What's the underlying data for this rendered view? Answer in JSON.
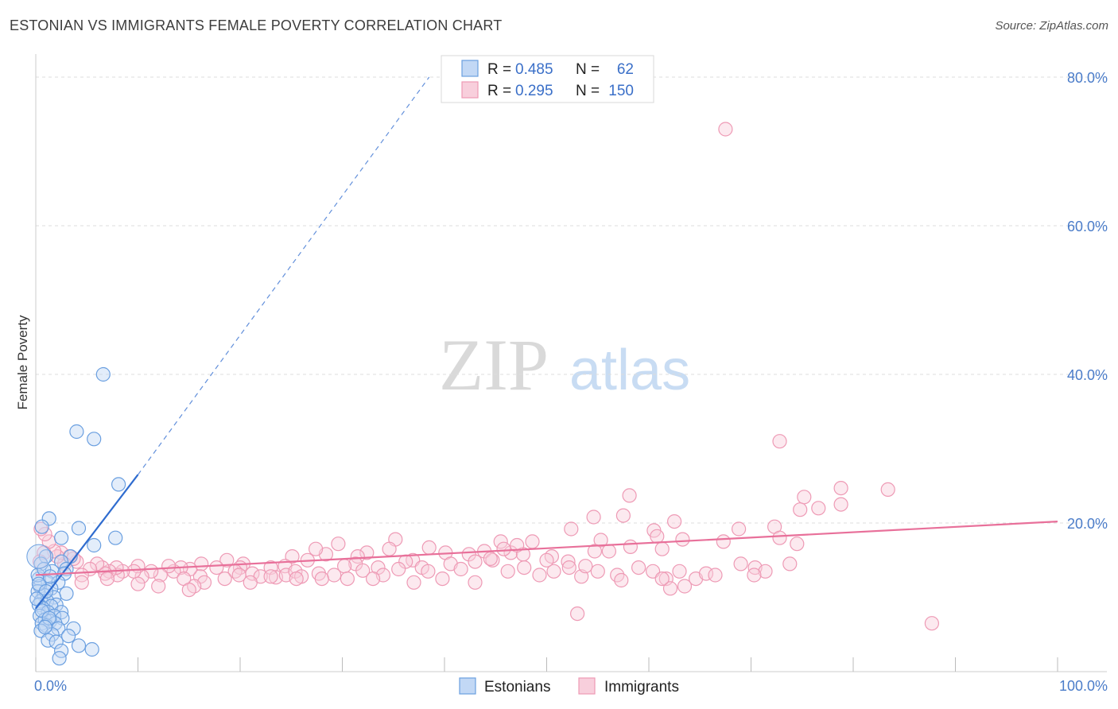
{
  "title": "ESTONIAN VS IMMIGRANTS FEMALE POVERTY CORRELATION CHART",
  "source": "Source: ZipAtlas.com",
  "watermark": {
    "zip": "ZIP",
    "atlas": "atlas"
  },
  "colors": {
    "estonians": "#6a9fe0",
    "estonians_fill": "#c2d8f5",
    "estonians_line": "#2f6ccf",
    "immigrants": "#ee9ab5",
    "immigrants_fill": "#f8cfdc",
    "immigrants_line": "#e8709a",
    "axis_label": "#4a7cc9",
    "grid": "#dddddd"
  },
  "stats_legend": [
    {
      "series": "Estonians",
      "r_label": "R =",
      "r_value": "0.485",
      "n_label": "N =",
      "n_value": "62"
    },
    {
      "series": "Immigrants",
      "r_label": "R =",
      "r_value": "0.295",
      "n_label": "N =",
      "n_value": "150"
    }
  ],
  "chart_data": {
    "type": "scatter",
    "title": "ESTONIAN VS IMMIGRANTS FEMALE POVERTY CORRELATION CHART",
    "xlabel": "",
    "ylabel": "Female Poverty",
    "xlim": [
      0,
      100
    ],
    "ylim": [
      0,
      80
    ],
    "x_tick_labels": [
      "0.0%",
      "100.0%"
    ],
    "y_ticks": [
      20,
      40,
      60,
      80
    ],
    "y_tick_labels": [
      "20.0%",
      "40.0%",
      "60.0%",
      "80.0%"
    ],
    "grid": true,
    "legend_position": "bottom",
    "series": [
      {
        "name": "Estonians",
        "r": 0.485,
        "n": 62,
        "trend": {
          "x": [
            0.0,
            10.0
          ],
          "y": [
            8.5,
            26.5
          ],
          "dashed_to": [
            38.5,
            80.0
          ]
        },
        "points": [
          [
            6.6,
            40.0
          ],
          [
            4.0,
            32.3
          ],
          [
            5.7,
            31.3
          ],
          [
            8.1,
            25.2
          ],
          [
            1.3,
            20.6
          ],
          [
            4.2,
            19.3
          ],
          [
            7.8,
            18.0
          ],
          [
            2.5,
            18.0
          ],
          [
            5.7,
            17.0
          ],
          [
            0.6,
            19.5
          ],
          [
            1.0,
            15.5
          ],
          [
            3.4,
            15.5
          ],
          [
            2.5,
            14.8
          ],
          [
            3.0,
            13.8
          ],
          [
            0.5,
            14.5
          ],
          [
            1.6,
            13.5
          ],
          [
            2.8,
            13.2
          ],
          [
            0.3,
            12.5
          ],
          [
            1.2,
            12.0
          ],
          [
            2.2,
            12.0
          ],
          [
            0.4,
            11.5
          ],
          [
            1.5,
            11.2
          ],
          [
            3.0,
            10.5
          ],
          [
            0.2,
            10.8
          ],
          [
            0.8,
            10.3
          ],
          [
            1.8,
            10.0
          ],
          [
            0.5,
            9.5
          ],
          [
            1.1,
            9.5
          ],
          [
            2.0,
            9.0
          ],
          [
            0.3,
            9.0
          ],
          [
            1.5,
            8.8
          ],
          [
            0.7,
            8.5
          ],
          [
            1.2,
            8.0
          ],
          [
            2.5,
            8.0
          ],
          [
            0.4,
            7.5
          ],
          [
            1.8,
            7.5
          ],
          [
            2.6,
            7.2
          ],
          [
            0.9,
            7.0
          ],
          [
            1.4,
            6.8
          ],
          [
            0.6,
            6.5
          ],
          [
            1.9,
            6.5
          ],
          [
            1.0,
            6.2
          ],
          [
            2.2,
            5.8
          ],
          [
            3.7,
            5.8
          ],
          [
            0.5,
            5.5
          ],
          [
            1.6,
            5.0
          ],
          [
            3.2,
            4.8
          ],
          [
            1.2,
            4.2
          ],
          [
            2.0,
            4.0
          ],
          [
            4.2,
            3.5
          ],
          [
            5.5,
            3.0
          ],
          [
            2.5,
            2.8
          ],
          [
            2.3,
            1.8
          ],
          [
            0.2,
            13.0
          ],
          [
            0.8,
            13.8
          ],
          [
            1.4,
            12.8
          ],
          [
            0.3,
            11.8
          ],
          [
            1.0,
            10.8
          ],
          [
            0.1,
            9.8
          ],
          [
            0.6,
            8.2
          ],
          [
            1.3,
            7.2
          ],
          [
            0.9,
            6.0
          ]
        ]
      },
      {
        "name": "Immigrants",
        "r": 0.295,
        "n": 150,
        "trend": {
          "x": [
            0,
            100
          ],
          "y": [
            13.0,
            20.2
          ]
        },
        "points": [
          [
            67.5,
            73.0
          ],
          [
            72.8,
            31.0
          ],
          [
            78.8,
            24.7
          ],
          [
            75.2,
            23.5
          ],
          [
            74.8,
            21.8
          ],
          [
            76.6,
            22.0
          ],
          [
            58.1,
            23.7
          ],
          [
            57.5,
            21.0
          ],
          [
            54.6,
            20.8
          ],
          [
            78.8,
            22.5
          ],
          [
            72.3,
            19.5
          ],
          [
            68.8,
            19.2
          ],
          [
            67.3,
            17.5
          ],
          [
            72.8,
            18.0
          ],
          [
            74.5,
            17.2
          ],
          [
            62.5,
            20.2
          ],
          [
            60.5,
            19.0
          ],
          [
            63.3,
            17.8
          ],
          [
            60.8,
            18.2
          ],
          [
            55.3,
            17.7
          ],
          [
            52.4,
            19.2
          ],
          [
            58.2,
            16.8
          ],
          [
            61.3,
            16.5
          ],
          [
            56.1,
            16.2
          ],
          [
            50.5,
            15.5
          ],
          [
            52.1,
            14.8
          ],
          [
            45.5,
            17.5
          ],
          [
            46.5,
            16.0
          ],
          [
            47.7,
            15.8
          ],
          [
            45.8,
            16.5
          ],
          [
            47.1,
            17.0
          ],
          [
            43.9,
            16.2
          ],
          [
            42.4,
            15.8
          ],
          [
            40.1,
            16.0
          ],
          [
            38.5,
            16.7
          ],
          [
            36.9,
            15.0
          ],
          [
            35.2,
            17.8
          ],
          [
            34.6,
            16.5
          ],
          [
            36.2,
            14.8
          ],
          [
            32.4,
            16.0
          ],
          [
            31.5,
            15.5
          ],
          [
            31.3,
            14.5
          ],
          [
            29.6,
            17.2
          ],
          [
            28.4,
            15.8
          ],
          [
            27.4,
            16.5
          ],
          [
            26.6,
            15.0
          ],
          [
            25.1,
            15.5
          ],
          [
            24.4,
            14.2
          ],
          [
            23.0,
            14.0
          ],
          [
            20.3,
            14.5
          ],
          [
            20.0,
            14.0
          ],
          [
            19.5,
            13.5
          ],
          [
            18.7,
            15.0
          ],
          [
            19.9,
            13.0
          ],
          [
            16.2,
            14.5
          ],
          [
            17.7,
            14.0
          ],
          [
            16.1,
            12.8
          ],
          [
            15.1,
            13.8
          ],
          [
            14.2,
            14.0
          ],
          [
            13.5,
            13.5
          ],
          [
            13.0,
            14.2
          ],
          [
            12.2,
            13.0
          ],
          [
            11.3,
            13.5
          ],
          [
            10.4,
            12.8
          ],
          [
            10.0,
            14.2
          ],
          [
            9.6,
            13.5
          ],
          [
            8.5,
            13.5
          ],
          [
            8.0,
            13.0
          ],
          [
            7.9,
            14.0
          ],
          [
            7.2,
            13.5
          ],
          [
            6.5,
            14.0
          ],
          [
            6.8,
            13.2
          ],
          [
            6.0,
            14.5
          ],
          [
            5.3,
            13.8
          ],
          [
            4.5,
            13.0
          ],
          [
            4.0,
            14.8
          ],
          [
            3.7,
            15.2
          ],
          [
            3.3,
            15.5
          ],
          [
            2.8,
            14.5
          ],
          [
            2.5,
            16.0
          ],
          [
            2.1,
            15.5
          ],
          [
            1.8,
            16.2
          ],
          [
            1.3,
            17.5
          ],
          [
            0.9,
            18.5
          ],
          [
            0.5,
            19.2
          ],
          [
            0.8,
            16.0
          ],
          [
            0.4,
            14.8
          ],
          [
            21.2,
            13.2
          ],
          [
            22.0,
            12.8
          ],
          [
            23.5,
            12.7
          ],
          [
            24.5,
            13.0
          ],
          [
            25.4,
            13.5
          ],
          [
            26.0,
            12.8
          ],
          [
            27.7,
            13.2
          ],
          [
            29.2,
            13.0
          ],
          [
            30.2,
            14.2
          ],
          [
            32.0,
            13.6
          ],
          [
            33.5,
            14.0
          ],
          [
            34.0,
            13.0
          ],
          [
            35.5,
            13.8
          ],
          [
            37.8,
            14.0
          ],
          [
            38.4,
            13.5
          ],
          [
            40.6,
            14.5
          ],
          [
            41.6,
            13.8
          ],
          [
            43.0,
            14.8
          ],
          [
            44.7,
            15.0
          ],
          [
            46.2,
            13.5
          ],
          [
            47.8,
            14.0
          ],
          [
            49.3,
            13.0
          ],
          [
            50.7,
            13.5
          ],
          [
            52.2,
            14.0
          ],
          [
            53.4,
            12.8
          ],
          [
            55.0,
            13.5
          ],
          [
            56.9,
            13.0
          ],
          [
            59.0,
            14.0
          ],
          [
            60.4,
            13.5
          ],
          [
            61.7,
            12.5
          ],
          [
            63.0,
            13.5
          ],
          [
            64.6,
            12.5
          ],
          [
            65.6,
            13.2
          ],
          [
            66.5,
            13.0
          ],
          [
            69.0,
            14.5
          ],
          [
            70.4,
            14.0
          ],
          [
            71.4,
            13.5
          ],
          [
            73.8,
            14.5
          ],
          [
            83.4,
            24.5
          ],
          [
            70.3,
            13.0
          ],
          [
            63.5,
            11.5
          ],
          [
            62.1,
            11.2
          ],
          [
            61.3,
            12.5
          ],
          [
            57.3,
            12.3
          ],
          [
            53.8,
            14.2
          ],
          [
            54.7,
            16.2
          ],
          [
            50.0,
            15.0
          ],
          [
            48.6,
            17.5
          ],
          [
            44.5,
            15.2
          ],
          [
            43.0,
            12.0
          ],
          [
            39.8,
            12.5
          ],
          [
            37.0,
            12.0
          ],
          [
            33.0,
            12.5
          ],
          [
            30.5,
            12.5
          ],
          [
            28.0,
            12.5
          ],
          [
            25.5,
            12.5
          ],
          [
            23.0,
            12.8
          ],
          [
            21.0,
            12.0
          ],
          [
            18.5,
            12.5
          ],
          [
            16.5,
            12.0
          ],
          [
            15.5,
            11.5
          ],
          [
            14.5,
            12.5
          ],
          [
            12.0,
            11.5
          ],
          [
            10.0,
            11.8
          ],
          [
            7.0,
            12.5
          ],
          [
            4.5,
            12.0
          ],
          [
            15.0,
            11.0
          ],
          [
            53.0,
            7.8
          ],
          [
            87.7,
            6.5
          ]
        ]
      }
    ]
  },
  "legend": [
    {
      "series": "Estonians",
      "label": "Estonians"
    },
    {
      "series": "Immigrants",
      "label": "Immigrants"
    }
  ]
}
